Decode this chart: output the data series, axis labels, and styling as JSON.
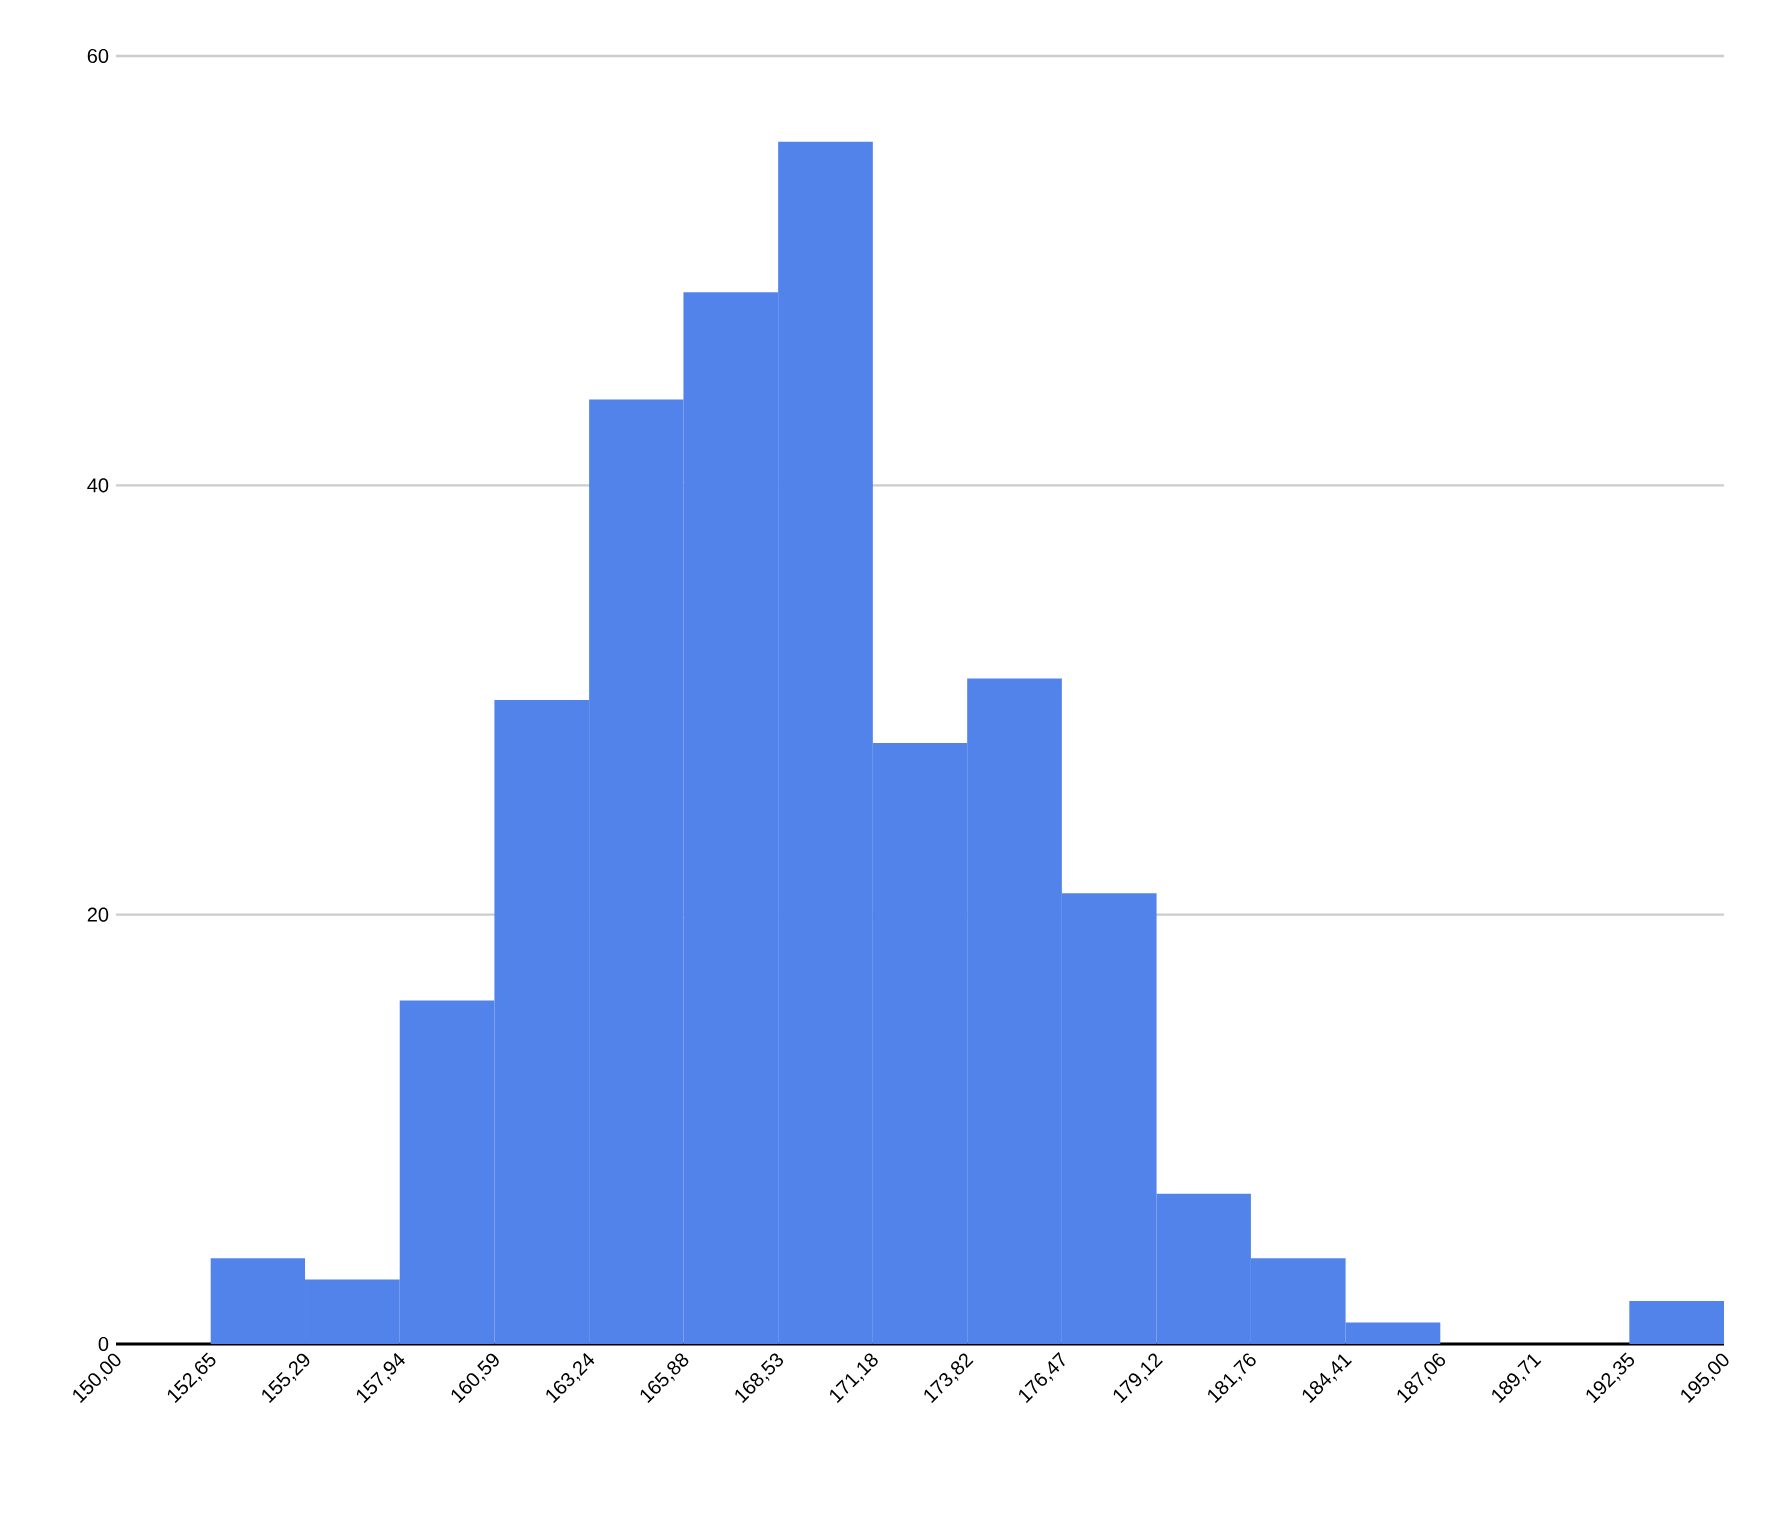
{
  "chart_data": {
    "type": "histogram",
    "color": "#5283eb",
    "bins": [
      150.0,
      152.65,
      155.29,
      157.94,
      160.59,
      163.24,
      165.88,
      168.53,
      171.18,
      173.82,
      176.47,
      179.12,
      181.76,
      184.41,
      187.06,
      189.71,
      192.35,
      195.0
    ],
    "values": [
      0,
      4,
      3,
      16,
      30,
      44,
      49,
      56,
      28,
      31,
      21,
      7,
      4,
      1,
      0,
      0,
      2
    ],
    "xlim": [
      150,
      195
    ],
    "xticks": [
      {
        "value": 150.0,
        "label": "150,00"
      },
      {
        "value": 152.65,
        "label": "152,65"
      },
      {
        "value": 155.29,
        "label": "155,29"
      },
      {
        "value": 157.94,
        "label": "157,94"
      },
      {
        "value": 160.59,
        "label": "160,59"
      },
      {
        "value": 163.24,
        "label": "163,24"
      },
      {
        "value": 165.88,
        "label": "165,88"
      },
      {
        "value": 168.53,
        "label": "168,53"
      },
      {
        "value": 171.18,
        "label": "171,18"
      },
      {
        "value": 173.82,
        "label": "173,82"
      },
      {
        "value": 176.47,
        "label": "176,47"
      },
      {
        "value": 179.12,
        "label": "179,12"
      },
      {
        "value": 181.76,
        "label": "181,76"
      },
      {
        "value": 184.41,
        "label": "184,41"
      },
      {
        "value": 187.06,
        "label": "187,06"
      },
      {
        "value": 189.71,
        "label": "189,71"
      },
      {
        "value": 192.35,
        "label": "192,35"
      },
      {
        "value": 195.0,
        "label": "195,00"
      }
    ],
    "ylim": [
      0,
      60
    ],
    "yticks": [
      0,
      20,
      40,
      60
    ],
    "grid": "y"
  }
}
